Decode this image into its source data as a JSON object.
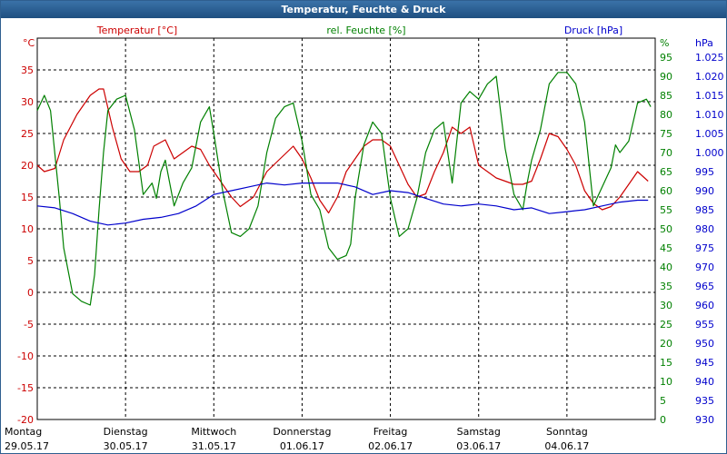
{
  "window": {
    "title": "Temperatur, Feuchte & Druck"
  },
  "chart_data": {
    "type": "line",
    "axes": {
      "temperature": {
        "label": "Temperatur [°C]",
        "unit": "°C",
        "range": [
          -20,
          40
        ],
        "step": 5,
        "color": "#cc0000"
      },
      "humidity": {
        "label": "rel. Feuchte [%]",
        "unit": "%",
        "range": [
          0,
          100
        ],
        "step": 5,
        "color": "#008000"
      },
      "pressure": {
        "label": "Druck [hPa]",
        "unit": "hPa",
        "range": [
          930,
          1030
        ],
        "step": 5,
        "color": "#0000cc"
      }
    },
    "x_axis": {
      "range": [
        0,
        7
      ],
      "days": [
        {
          "weekday": "Montag",
          "date": "29.05.17"
        },
        {
          "weekday": "Dienstag",
          "date": "30.05.17"
        },
        {
          "weekday": "Mittwoch",
          "date": "31.05.17"
        },
        {
          "weekday": "Donnerstag",
          "date": "01.06.17"
        },
        {
          "weekday": "Freitag",
          "date": "02.06.17"
        },
        {
          "weekday": "Samstag",
          "date": "03.06.17"
        },
        {
          "weekday": "Sonntag",
          "date": "04.06.17"
        }
      ]
    },
    "grid": true,
    "series": [
      {
        "name": "Temperatur [°C]",
        "axis": "temperature",
        "color": "#cc0000",
        "x": [
          0,
          0.08,
          0.2,
          0.3,
          0.45,
          0.6,
          0.7,
          0.75,
          0.85,
          0.95,
          1.05,
          1.15,
          1.25,
          1.32,
          1.45,
          1.55,
          1.65,
          1.75,
          1.85,
          1.95,
          2.1,
          2.2,
          2.3,
          2.45,
          2.6,
          2.75,
          2.9,
          3.0,
          3.1,
          3.2,
          3.3,
          3.4,
          3.5,
          3.6,
          3.7,
          3.8,
          3.9,
          4.0,
          4.1,
          4.2,
          4.3,
          4.4,
          4.5,
          4.6,
          4.7,
          4.8,
          4.9,
          5.0,
          5.1,
          5.2,
          5.3,
          5.4,
          5.5,
          5.6,
          5.7,
          5.8,
          5.9,
          6.0,
          6.1,
          6.2,
          6.3,
          6.4,
          6.5,
          6.6,
          6.7,
          6.8,
          6.92
        ],
        "y": [
          20,
          19,
          19.5,
          24,
          28,
          31,
          32,
          32,
          26,
          21,
          19,
          19,
          20,
          23,
          24,
          21,
          22,
          23,
          22.5,
          20,
          17,
          15,
          13.5,
          15,
          19,
          21,
          23,
          21,
          18,
          14.5,
          12.5,
          15,
          19,
          21,
          23,
          24,
          24,
          23,
          20,
          17,
          15,
          15.5,
          19,
          22,
          26,
          25,
          26,
          20,
          19,
          18,
          17.5,
          17,
          17,
          17.5,
          21,
          25,
          24.5,
          22.5,
          20,
          16,
          14,
          13,
          13.5,
          15,
          17,
          19,
          17.5
        ]
      },
      {
        "name": "rel. Feuchte [%]",
        "axis": "humidity",
        "color": "#008000",
        "x": [
          0,
          0.08,
          0.15,
          0.25,
          0.3,
          0.4,
          0.5,
          0.6,
          0.65,
          0.7,
          0.75,
          0.8,
          0.9,
          1.0,
          1.1,
          1.2,
          1.3,
          1.35,
          1.4,
          1.45,
          1.55,
          1.65,
          1.75,
          1.85,
          1.95,
          2.0,
          2.1,
          2.2,
          2.3,
          2.4,
          2.5,
          2.6,
          2.7,
          2.8,
          2.9,
          3.0,
          3.05,
          3.1,
          3.2,
          3.3,
          3.4,
          3.5,
          3.55,
          3.6,
          3.7,
          3.8,
          3.9,
          4.0,
          4.1,
          4.2,
          4.3,
          4.4,
          4.5,
          4.6,
          4.65,
          4.7,
          4.8,
          4.9,
          5.0,
          5.1,
          5.2,
          5.3,
          5.4,
          5.5,
          5.55,
          5.6,
          5.7,
          5.8,
          5.9,
          6.0,
          6.1,
          6.2,
          6.3,
          6.4,
          6.5,
          6.55,
          6.6,
          6.7,
          6.8,
          6.9,
          6.95
        ],
        "y": [
          81,
          85,
          81,
          58,
          45,
          33,
          31,
          30,
          38,
          55,
          70,
          81,
          84,
          85,
          76,
          59,
          62,
          58,
          65,
          68,
          56,
          62,
          66,
          78,
          82,
          75,
          60,
          49,
          48,
          50,
          56,
          70,
          79,
          82,
          83,
          73,
          66,
          59,
          55,
          45,
          42,
          43,
          46,
          58,
          72,
          78,
          75,
          58,
          48,
          50,
          58,
          70,
          76,
          78,
          70,
          62,
          83,
          86,
          84,
          88,
          90,
          71,
          59,
          55,
          62,
          68,
          76,
          88,
          91,
          91,
          88,
          78,
          56,
          61,
          66,
          72,
          70,
          73,
          83,
          84,
          82
        ]
      },
      {
        "name": "Druck [hPa]",
        "axis": "pressure",
        "color": "#0000cc",
        "x": [
          0,
          0.2,
          0.4,
          0.6,
          0.8,
          1.0,
          1.2,
          1.4,
          1.6,
          1.8,
          2.0,
          2.2,
          2.4,
          2.6,
          2.8,
          3.0,
          3.2,
          3.4,
          3.6,
          3.8,
          4.0,
          4.2,
          4.4,
          4.6,
          4.8,
          5.0,
          5.2,
          5.4,
          5.6,
          5.8,
          6.0,
          6.2,
          6.4,
          6.6,
          6.8,
          6.92
        ],
        "y": [
          986,
          985.5,
          984,
          982,
          981,
          981.5,
          982.5,
          983,
          984,
          986,
          989,
          990,
          991,
          992,
          991.5,
          992,
          992,
          992,
          991,
          989,
          990,
          989.5,
          988,
          986.5,
          986,
          986.5,
          986,
          985,
          985.5,
          984,
          984.5,
          985,
          986,
          987,
          987.5,
          987.5
        ]
      }
    ]
  }
}
